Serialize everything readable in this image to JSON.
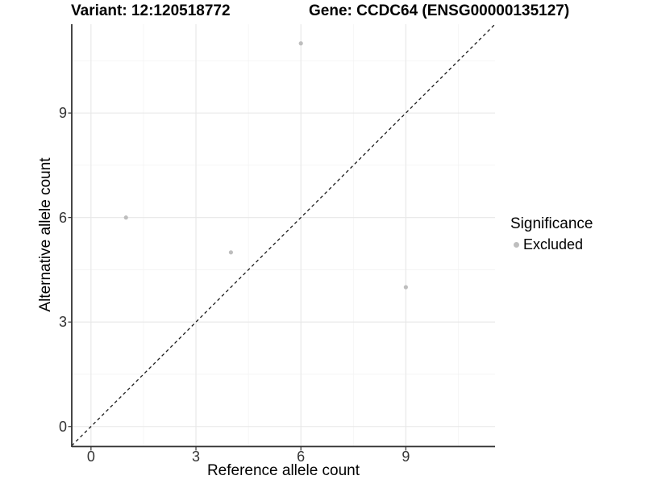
{
  "titles": {
    "variant": "Variant: 12:120518772",
    "gene": "Gene: CCDC64 (ENSG00000135127)"
  },
  "legend": {
    "title": "Significance",
    "items": [
      {
        "label": "Excluded",
        "color": "#bebebe"
      }
    ]
  },
  "chart_data": {
    "type": "scatter",
    "title": "Variant: 12:120518772   Gene: CCDC64 (ENSG00000135127)",
    "xlabel": "Reference allele count",
    "ylabel": "Alternative allele count",
    "xlim": [
      -0.55,
      11.55
    ],
    "ylim": [
      -0.55,
      11.55
    ],
    "x_ticks": [
      0,
      3,
      6,
      9
    ],
    "y_ticks": [
      0,
      3,
      6,
      9
    ],
    "x_minor_ticks": [
      1.5,
      4.5,
      7.5,
      10.5
    ],
    "y_minor_ticks": [
      1.5,
      4.5,
      7.5,
      10.5
    ],
    "grid": true,
    "legend_position": "right",
    "series": [
      {
        "name": "Excluded",
        "color": "#bebebe",
        "points": [
          {
            "x": 1,
            "y": 6
          },
          {
            "x": 4,
            "y": 5
          },
          {
            "x": 6,
            "y": 11
          },
          {
            "x": 9,
            "y": 4
          }
        ]
      }
    ],
    "reference_line": {
      "kind": "identity y = x",
      "style": "dashed",
      "color": "#1a1a1a"
    }
  },
  "colors": {
    "background": "#ffffff",
    "grid_major": "#e7e7e7",
    "grid_minor": "#f3f3f3",
    "axis_line": "#333333",
    "tick_text": "#333333",
    "point": "#bebebe"
  }
}
